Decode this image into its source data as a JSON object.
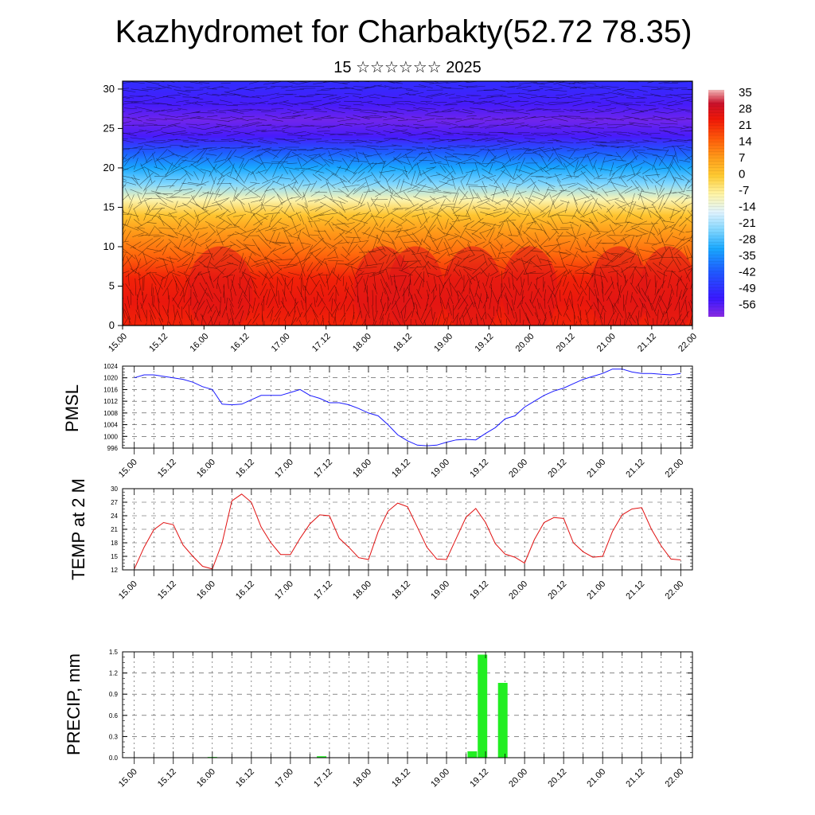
{
  "header": {
    "title": "Kazhydromet for Charbakty(52.72 78.35)",
    "subtitle": "15 ☆☆☆☆☆☆ 2025"
  },
  "colors": {
    "pmsl_line": "#1a1aff",
    "temp_line": "#e01010",
    "precip_bar": "#22ee22",
    "wind_lines": "#000000"
  },
  "chart_data": [
    {
      "type": "heatmap",
      "name": "cross-section",
      "x_ticks": [
        "15.00",
        "15.12",
        "16.00",
        "16.12",
        "17.00",
        "17.12",
        "18.00",
        "18.12",
        "19.00",
        "19.12",
        "20.00",
        "20.12",
        "21.00",
        "21.12",
        "22.00"
      ],
      "y_ticks": [
        0,
        5,
        10,
        15,
        20,
        25,
        30
      ],
      "ylim": [
        0,
        31
      ],
      "colorbar_labels": [
        "35",
        "28",
        "21",
        "14",
        "7",
        "0",
        "-7",
        "-14",
        "-21",
        "-28",
        "-35",
        "-42",
        "-49",
        "-56"
      ],
      "colorbar_range": [
        -60,
        38
      ],
      "level_profile": [
        {
          "level": 0,
          "value": 20
        },
        {
          "level": 3,
          "value": 22
        },
        {
          "level": 6,
          "value": 20
        },
        {
          "level": 9,
          "value": 13
        },
        {
          "level": 12,
          "value": 7
        },
        {
          "level": 14,
          "value": 1
        },
        {
          "level": 16,
          "value": -8
        },
        {
          "level": 18,
          "value": -22
        },
        {
          "level": 20,
          "value": -30
        },
        {
          "level": 22,
          "value": -42
        },
        {
          "level": 24,
          "value": -55
        },
        {
          "level": 26,
          "value": -58
        },
        {
          "level": 28,
          "value": -55
        },
        {
          "level": 31,
          "value": -50
        }
      ],
      "wind_barbs": "dense black streaks over the whole field"
    },
    {
      "type": "line",
      "name": "PMSL",
      "ylabel": "PMSL",
      "ylim": [
        996,
        1024
      ],
      "y_ticks": [
        996,
        1000,
        1004,
        1008,
        1012,
        1016,
        1020,
        1024
      ],
      "x_ticks": [
        "15.00",
        "15.12",
        "16.00",
        "16.12",
        "17.00",
        "17.12",
        "18.00",
        "18.12",
        "19.00",
        "19.12",
        "20.00",
        "20.12",
        "21.00",
        "21.12",
        "22.00"
      ],
      "xlim": [
        -0.15,
        7.15
      ],
      "x": [
        0,
        0.125,
        0.25,
        0.375,
        0.5,
        0.625,
        0.75,
        0.875,
        1,
        1.125,
        1.25,
        1.375,
        1.5,
        1.625,
        1.75,
        1.875,
        2,
        2.125,
        2.25,
        2.375,
        2.5,
        2.625,
        2.75,
        2.875,
        3,
        3.125,
        3.25,
        3.375,
        3.5,
        3.625,
        3.75,
        3.875,
        4,
        4.125,
        4.25,
        4.375,
        4.5,
        4.625,
        4.75,
        4.875,
        5,
        5.125,
        5.25,
        5.375,
        5.5,
        5.625,
        5.75,
        5.875,
        6,
        6.125,
        6.25,
        6.375,
        6.5,
        6.625,
        6.75,
        6.875,
        7
      ],
      "y": [
        1020,
        1021,
        1021,
        1020.5,
        1020,
        1019.5,
        1018.5,
        1017,
        1016,
        1011,
        1010.8,
        1011,
        1012.5,
        1014,
        1014,
        1014,
        1015,
        1016,
        1014,
        1013,
        1011.5,
        1011.5,
        1010.8,
        1009.5,
        1008,
        1007,
        1004,
        1000.5,
        998.5,
        997,
        996.8,
        997,
        998,
        998.8,
        999,
        998.8,
        1001,
        1003,
        1006,
        1007,
        1010,
        1012,
        1014,
        1015.5,
        1016.5,
        1018,
        1019.5,
        1020.5,
        1021.5,
        1023,
        1023,
        1022,
        1021.5,
        1021.5,
        1021.2,
        1021,
        1021.5
      ]
    },
    {
      "type": "line",
      "name": "TEMP at 2 M",
      "ylabel": "TEMP at 2 M",
      "ylim": [
        12,
        30
      ],
      "y_ticks": [
        12,
        15,
        18,
        21,
        24,
        27,
        30
      ],
      "x_ticks": [
        "15.00",
        "15.12",
        "16.00",
        "16.12",
        "17.00",
        "17.12",
        "18.00",
        "18.12",
        "19.00",
        "19.12",
        "20.00",
        "20.12",
        "21.00",
        "21.12",
        "22.00"
      ],
      "xlim": [
        -0.15,
        7.15
      ],
      "x": [
        0,
        0.125,
        0.25,
        0.375,
        0.5,
        0.625,
        0.75,
        0.875,
        1,
        1.125,
        1.25,
        1.375,
        1.5,
        1.625,
        1.75,
        1.875,
        2,
        2.125,
        2.25,
        2.375,
        2.5,
        2.625,
        2.75,
        2.875,
        3,
        3.125,
        3.25,
        3.375,
        3.5,
        3.625,
        3.75,
        3.875,
        4,
        4.125,
        4.25,
        4.375,
        4.5,
        4.625,
        4.75,
        4.875,
        5,
        5.125,
        5.25,
        5.375,
        5.5,
        5.625,
        5.75,
        5.875,
        6,
        6.125,
        6.25,
        6.375,
        6.5,
        6.625,
        6.75,
        6.875,
        7
      ],
      "y": [
        12.2,
        17,
        20.9,
        22.5,
        22,
        17.5,
        15,
        12.8,
        12.2,
        18,
        27.3,
        28.8,
        27,
        21.5,
        18,
        15.4,
        15.4,
        19,
        22.2,
        24.2,
        24,
        19,
        17,
        14.7,
        14.3,
        20.5,
        25,
        26.8,
        26,
        21.5,
        17,
        14.4,
        14.3,
        19,
        23.7,
        25.6,
        22.5,
        17.8,
        15.5,
        14.8,
        13.5,
        18.7,
        22.5,
        23.6,
        23.4,
        18,
        16,
        14.8,
        15,
        20.5,
        24.2,
        25.5,
        25.8,
        21,
        17.3,
        14.4,
        14.2
      ]
    },
    {
      "type": "bar",
      "name": "PRECIP",
      "ylabel": "PRECIP, mm",
      "ylim": [
        0,
        1.5
      ],
      "y_ticks": [
        "0.0",
        "0.3",
        "0.6",
        "0.9",
        "1.2",
        "1.5"
      ],
      "x_ticks": [
        "15.00",
        "15.12",
        "16.00",
        "16.12",
        "17.00",
        "17.12",
        "18.00",
        "18.12",
        "19.00",
        "19.12",
        "20.00",
        "20.12",
        "21.00",
        "21.12",
        "22.00"
      ],
      "xlim": [
        -0.15,
        7.15
      ],
      "x": [
        1.0,
        2.4,
        4.33,
        4.46,
        4.72
      ],
      "values": [
        0.01,
        0.02,
        0.09,
        1.46,
        1.06
      ]
    }
  ]
}
